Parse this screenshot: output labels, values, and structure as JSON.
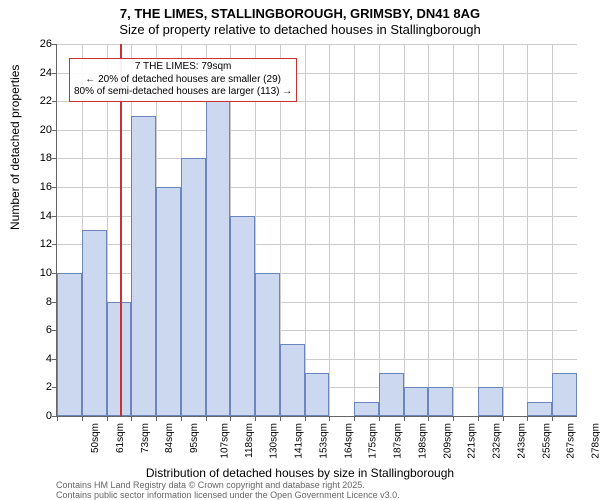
{
  "chart": {
    "type": "histogram",
    "title_line1": "7, THE LIMES, STALLINGBOROUGH, GRIMSBY, DN41 8AG",
    "title_line2": "Size of property relative to detached houses in Stallingborough",
    "y_axis": {
      "label": "Number of detached properties",
      "min": 0,
      "max": 26,
      "tick_step": 2,
      "ticks": [
        0,
        2,
        4,
        6,
        8,
        10,
        12,
        14,
        16,
        18,
        20,
        22,
        24,
        26
      ]
    },
    "x_axis": {
      "label": "Distribution of detached houses by size in Stallingborough",
      "tick_labels": [
        "50sqm",
        "61sqm",
        "73sqm",
        "84sqm",
        "95sqm",
        "107sqm",
        "118sqm",
        "130sqm",
        "141sqm",
        "153sqm",
        "164sqm",
        "175sqm",
        "187sqm",
        "198sqm",
        "209sqm",
        "221sqm",
        "232sqm",
        "243sqm",
        "255sqm",
        "267sqm",
        "278sqm"
      ]
    },
    "bars": {
      "values": [
        10,
        13,
        8,
        21,
        16,
        18,
        22,
        14,
        10,
        5,
        3,
        0,
        1,
        3,
        2,
        2,
        0,
        2,
        0,
        1,
        3
      ],
      "fill_color": "#cbd8ef",
      "border_color": "#6a86bd"
    },
    "marker": {
      "position_index": 2.55,
      "color": "#c83232"
    },
    "annotation": {
      "line1": "7 THE LIMES: 79sqm",
      "line2": "← 20% of detached houses are smaller (29)",
      "line3": "80% of semi-detached houses are larger (113) →",
      "border_color": "#c83232"
    },
    "grid_color": "#cccccc",
    "background_color": "#ffffff",
    "axis_color": "#666666",
    "footer": {
      "line1": "Contains HM Land Registry data © Crown copyright and database right 2025.",
      "line2": "Contains public sector information licensed under the Open Government Licence v3.0.",
      "color": "#666666"
    },
    "fonts": {
      "title_fontsize": 13,
      "axis_label_fontsize": 12,
      "tick_fontsize": 11,
      "annotation_fontsize": 10,
      "footer_fontsize": 9
    }
  }
}
